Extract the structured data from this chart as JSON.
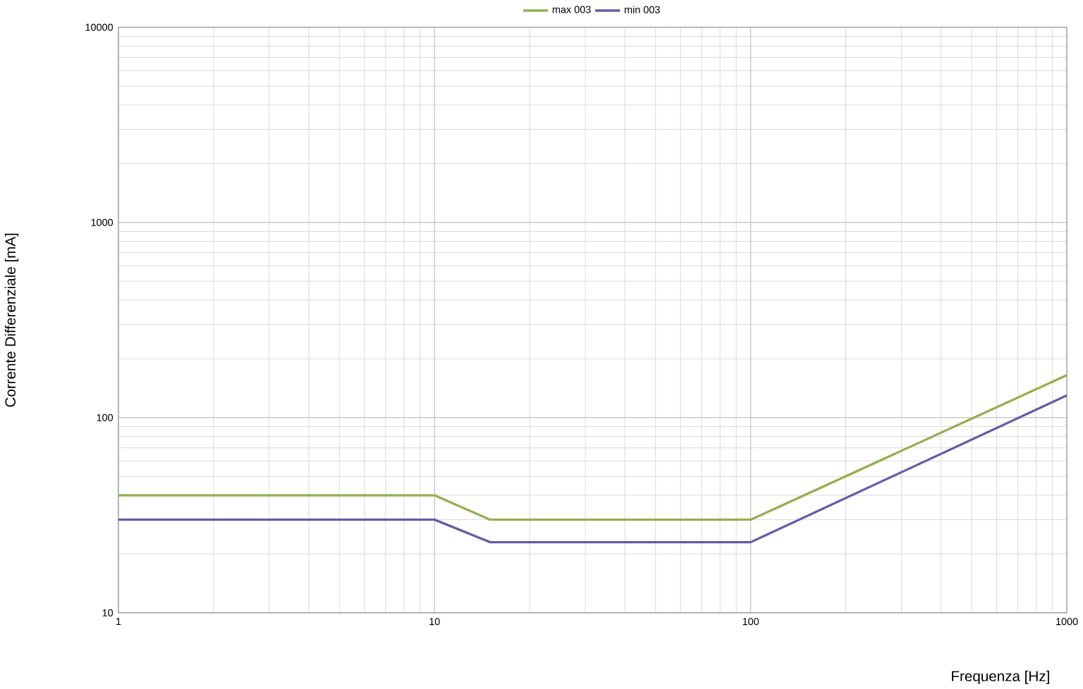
{
  "chart_data": {
    "type": "line",
    "xlabel": "Frequenza [Hz]",
    "ylabel": "Corrente Differenziale [mA]",
    "log": "xy",
    "grid": true,
    "legend": "top",
    "xlim": [
      1,
      1000
    ],
    "xticks": [
      1,
      10,
      100,
      1000
    ],
    "ylim": [
      10,
      10000
    ],
    "yticks": [
      10,
      100,
      1000,
      10000
    ],
    "x": [
      1,
      10,
      15,
      100,
      1000
    ],
    "series": [
      {
        "name": "max 003",
        "color": "#92b050",
        "values": [
          40,
          40,
          30,
          30,
          165
        ]
      },
      {
        "name": "min 003",
        "color": "#6a5aa8",
        "values": [
          30,
          30,
          23,
          23,
          130
        ]
      }
    ]
  }
}
